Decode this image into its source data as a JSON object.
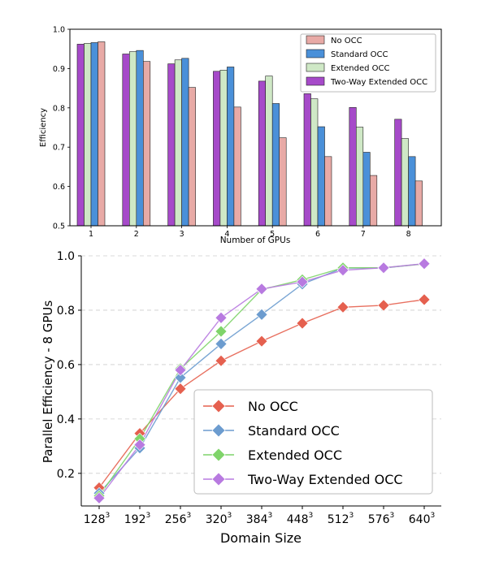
{
  "chart_data": [
    {
      "type": "bar",
      "title": "",
      "xlabel": "Number of GPUs",
      "ylabel": "Efficiency",
      "ylim": [
        0.5,
        1.0
      ],
      "yticks": [
        "0.5",
        "0.6",
        "0.7",
        "0.8",
        "0.9",
        "1.0"
      ],
      "categories": [
        "1",
        "2",
        "3",
        "4",
        "5",
        "6",
        "7",
        "8"
      ],
      "grid": false,
      "legend_position": "top-right",
      "series": [
        {
          "name": "Two-Way Extended OCC",
          "color": "#a64ac9",
          "values": [
            0.962,
            0.937,
            0.912,
            0.893,
            0.868,
            0.836,
            0.801,
            0.771
          ]
        },
        {
          "name": "Extended OCC",
          "color": "#cfe8c6",
          "values": [
            0.964,
            0.943,
            0.922,
            0.896,
            0.881,
            0.823,
            0.751,
            0.722
          ]
        },
        {
          "name": "Standard OCC",
          "color": "#4a90d9",
          "values": [
            0.966,
            0.946,
            0.926,
            0.904,
            0.811,
            0.752,
            0.687,
            0.676
          ]
        },
        {
          "name": "No OCC",
          "color": "#e8aaa6",
          "values": [
            0.968,
            0.918,
            0.852,
            0.802,
            0.724,
            0.676,
            0.628,
            0.614
          ]
        }
      ],
      "legend_order": [
        "No OCC",
        "Standard OCC",
        "Extended OCC",
        "Two-Way Extended OCC"
      ]
    },
    {
      "type": "line",
      "title": "",
      "xlabel": "Domain Size",
      "ylabel": "Parallel Efficiency - 8 GPUs",
      "ylim": [
        0.08,
        1.0
      ],
      "yticks": [
        "0.2",
        "0.4",
        "0.6",
        "0.8",
        "1.0"
      ],
      "x": [
        "128",
        "192",
        "256",
        "320",
        "384",
        "448",
        "512",
        "576",
        "640"
      ],
      "x_superscript": "3",
      "grid": true,
      "legend_position": "bottom-right",
      "series": [
        {
          "name": "No OCC",
          "color": "#e5604f",
          "values": [
            0.147,
            0.347,
            0.511,
            0.614,
            0.686,
            0.752,
            0.811,
            0.818,
            0.839
          ]
        },
        {
          "name": "Standard OCC",
          "color": "#6c9ccf",
          "values": [
            0.127,
            0.293,
            0.552,
            0.676,
            0.784,
            0.896,
            0.955,
            0.955,
            0.971
          ]
        },
        {
          "name": "Extended OCC",
          "color": "#7fd46a",
          "values": [
            0.117,
            0.327,
            0.585,
            0.722,
            0.876,
            0.912,
            0.956,
            0.956,
            0.97
          ]
        },
        {
          "name": "Two-Way Extended OCC",
          "color": "#b87ae0",
          "values": [
            0.109,
            0.305,
            0.58,
            0.772,
            0.878,
            0.904,
            0.947,
            0.956,
            0.971
          ]
        }
      ]
    }
  ]
}
